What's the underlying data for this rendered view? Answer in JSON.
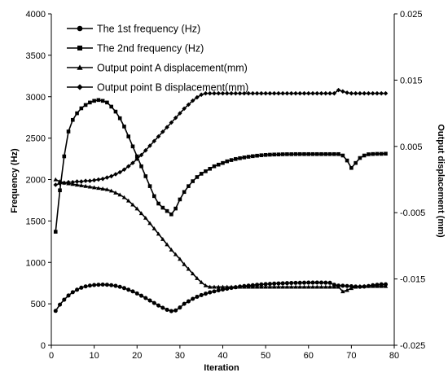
{
  "chart_data": {
    "type": "line",
    "xlabel": "Iteration",
    "ylabel": "Frequency (Hz)",
    "y2label": "Output displacement (mm)",
    "xlim": [
      0,
      80
    ],
    "ylim": [
      0,
      4000
    ],
    "y2lim": [
      -0.025,
      0.025
    ],
    "x_ticks": [
      "0",
      "10",
      "20",
      "30",
      "40",
      "50",
      "60",
      "70",
      "80"
    ],
    "y_ticks": [
      "0",
      "500",
      "1000",
      "1500",
      "2000",
      "2500",
      "3000",
      "3500",
      "4000"
    ],
    "y2_ticks": [
      "-0.025",
      "-0.015",
      "-0.005",
      "0.005",
      "0.015",
      "0.025"
    ],
    "grid": false,
    "legend_position": "top-left",
    "series": [
      {
        "name": "The 1st frequency (Hz)",
        "axis": "left",
        "marker": "circle",
        "x": [
          1,
          2,
          3,
          4,
          5,
          6,
          7,
          8,
          9,
          10,
          11,
          12,
          13,
          14,
          15,
          16,
          17,
          18,
          19,
          20,
          21,
          22,
          23,
          24,
          25,
          26,
          27,
          28,
          29,
          30,
          31,
          32,
          33,
          34,
          35,
          36,
          37,
          38,
          39,
          40,
          41,
          42,
          43,
          44,
          45,
          46,
          47,
          48,
          49,
          50,
          51,
          52,
          53,
          54,
          55,
          56,
          57,
          58,
          59,
          60,
          61,
          62,
          63,
          64,
          65,
          66,
          67,
          68,
          69,
          70,
          71,
          72,
          73,
          74,
          75,
          76,
          77,
          78
        ],
        "values": [
          415,
          490,
          550,
          600,
          640,
          670,
          695,
          710,
          720,
          727,
          730,
          732,
          730,
          725,
          717,
          705,
          690,
          670,
          650,
          625,
          598,
          570,
          540,
          510,
          480,
          452,
          428,
          412,
          420,
          455,
          500,
          530,
          560,
          585,
          605,
          622,
          638,
          650,
          662,
          672,
          682,
          692,
          700,
          708,
          715,
          720,
          725,
          730,
          734,
          738,
          741,
          744,
          746,
          748,
          750,
          752,
          753,
          754,
          755,
          756,
          756,
          757,
          756,
          755,
          754,
          730,
          720,
          718,
          715,
          712,
          708,
          705,
          708,
          715,
          725,
          730,
          735,
          735
        ]
      },
      {
        "name": "The 2nd frequency (Hz)",
        "axis": "left",
        "marker": "square",
        "x": [
          1,
          2,
          3,
          4,
          5,
          6,
          7,
          8,
          9,
          10,
          11,
          12,
          13,
          14,
          15,
          16,
          17,
          18,
          19,
          20,
          21,
          22,
          23,
          24,
          25,
          26,
          27,
          28,
          29,
          30,
          31,
          32,
          33,
          34,
          35,
          36,
          37,
          38,
          39,
          40,
          41,
          42,
          43,
          44,
          45,
          46,
          47,
          48,
          49,
          50,
          51,
          52,
          53,
          54,
          55,
          56,
          57,
          58,
          59,
          60,
          61,
          62,
          63,
          64,
          65,
          66,
          67,
          68,
          69,
          70,
          71,
          72,
          73,
          74,
          75,
          76,
          77,
          78
        ],
        "values": [
          1370,
          1870,
          2280,
          2580,
          2720,
          2800,
          2860,
          2900,
          2930,
          2950,
          2960,
          2950,
          2930,
          2880,
          2820,
          2740,
          2640,
          2520,
          2400,
          2280,
          2160,
          2040,
          1920,
          1800,
          1710,
          1660,
          1620,
          1580,
          1650,
          1760,
          1850,
          1920,
          1980,
          2030,
          2070,
          2100,
          2130,
          2160,
          2180,
          2200,
          2220,
          2235,
          2248,
          2258,
          2267,
          2275,
          2282,
          2288,
          2293,
          2297,
          2300,
          2302,
          2303,
          2305,
          2306,
          2306,
          2307,
          2307,
          2307,
          2307,
          2307,
          2307,
          2307,
          2307,
          2307,
          2307,
          2307,
          2290,
          2230,
          2140,
          2200,
          2260,
          2290,
          2305,
          2308,
          2310,
          2310,
          2312
        ]
      },
      {
        "name": "Output point A displacement(mm)",
        "axis": "right",
        "marker": "triangle",
        "x": [
          1,
          2,
          3,
          4,
          5,
          6,
          7,
          8,
          9,
          10,
          11,
          12,
          13,
          14,
          15,
          16,
          17,
          18,
          19,
          20,
          21,
          22,
          23,
          24,
          25,
          26,
          27,
          28,
          29,
          30,
          31,
          32,
          33,
          34,
          35,
          36,
          37,
          38,
          39,
          40,
          41,
          42,
          43,
          44,
          45,
          46,
          47,
          48,
          49,
          50,
          51,
          52,
          53,
          54,
          55,
          56,
          57,
          58,
          59,
          60,
          61,
          62,
          63,
          64,
          65,
          66,
          67,
          68,
          69,
          70,
          71,
          72,
          73,
          74,
          75,
          76,
          77,
          78
        ],
        "values": [
          0.0,
          -0.0003,
          -0.0005,
          -0.0006,
          -0.0007,
          -0.0008,
          -0.0009,
          -0.001,
          -0.0011,
          -0.0012,
          -0.0013,
          -0.0014,
          -0.0015,
          -0.0017,
          -0.002,
          -0.0023,
          -0.0027,
          -0.0032,
          -0.0038,
          -0.0044,
          -0.0051,
          -0.0058,
          -0.0066,
          -0.0074,
          -0.0082,
          -0.009,
          -0.0098,
          -0.0106,
          -0.0113,
          -0.012,
          -0.0128,
          -0.0135,
          -0.0142,
          -0.0149,
          -0.0155,
          -0.016,
          -0.0162,
          -0.0162,
          -0.0162,
          -0.0162,
          -0.0162,
          -0.0162,
          -0.0162,
          -0.0162,
          -0.0162,
          -0.0162,
          -0.0162,
          -0.0162,
          -0.0162,
          -0.0162,
          -0.0162,
          -0.0162,
          -0.0162,
          -0.0162,
          -0.0162,
          -0.0162,
          -0.0162,
          -0.0162,
          -0.0162,
          -0.0162,
          -0.0162,
          -0.0162,
          -0.0162,
          -0.0162,
          -0.0162,
          -0.0162,
          -0.0162,
          -0.0169,
          -0.0167,
          -0.0164,
          -0.0162,
          -0.0161,
          -0.0161,
          -0.0161,
          -0.0161,
          -0.0161,
          -0.0161,
          -0.0161
        ]
      },
      {
        "name": "Output point B displacement(mm)",
        "axis": "right",
        "marker": "diamond",
        "x": [
          1,
          2,
          3,
          4,
          5,
          6,
          7,
          8,
          9,
          10,
          11,
          12,
          13,
          14,
          15,
          16,
          17,
          18,
          19,
          20,
          21,
          22,
          23,
          24,
          25,
          26,
          27,
          28,
          29,
          30,
          31,
          32,
          33,
          34,
          35,
          36,
          37,
          38,
          39,
          40,
          41,
          42,
          43,
          44,
          45,
          46,
          47,
          48,
          49,
          50,
          51,
          52,
          53,
          54,
          55,
          56,
          57,
          58,
          59,
          60,
          61,
          62,
          63,
          64,
          65,
          66,
          67,
          68,
          69,
          70,
          71,
          72,
          73,
          74,
          75,
          76,
          77,
          78
        ],
        "values": [
          -0.0008,
          -0.0006,
          -0.0005,
          -0.0004,
          -0.0004,
          -0.0003,
          -0.0003,
          -0.0002,
          -0.0002,
          -0.0001,
          0.0,
          0.0001,
          0.0003,
          0.0005,
          0.0008,
          0.0011,
          0.0015,
          0.002,
          0.0025,
          0.0031,
          0.0037,
          0.0044,
          0.0051,
          0.0058,
          0.0065,
          0.0072,
          0.0079,
          0.0086,
          0.0093,
          0.01,
          0.0107,
          0.0113,
          0.0119,
          0.0124,
          0.0128,
          0.013,
          0.013,
          0.013,
          0.013,
          0.013,
          0.013,
          0.013,
          0.013,
          0.013,
          0.013,
          0.013,
          0.013,
          0.013,
          0.013,
          0.013,
          0.013,
          0.013,
          0.013,
          0.013,
          0.013,
          0.013,
          0.013,
          0.013,
          0.013,
          0.013,
          0.013,
          0.013,
          0.013,
          0.013,
          0.013,
          0.013,
          0.0135,
          0.0133,
          0.0131,
          0.013,
          0.013,
          0.013,
          0.013,
          0.013,
          0.013,
          0.013,
          0.013,
          0.013
        ]
      }
    ]
  }
}
